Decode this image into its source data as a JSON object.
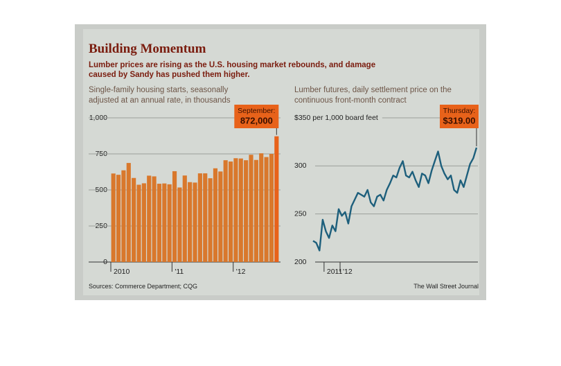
{
  "header": {
    "title": "Building Momentum",
    "subtitle": "Lumber prices are rising as the U.S. housing market rebounds, and damage caused by Sandy has pushed them higher."
  },
  "chart_data": [
    {
      "type": "bar",
      "title": "Single-family housing starts, seasonally adjusted at an annual rate, in thousands",
      "categories": [
        "2010",
        null,
        null,
        null,
        null,
        null,
        null,
        null,
        null,
        null,
        null,
        null,
        "'11",
        null,
        null,
        null,
        null,
        null,
        null,
        null,
        null,
        null,
        null,
        null,
        "'12",
        null,
        null,
        null,
        null,
        null,
        null,
        null,
        null
      ],
      "values": [
        614,
        605,
        636,
        687,
        583,
        536,
        546,
        599,
        594,
        543,
        545,
        539,
        630,
        517,
        600,
        554,
        551,
        615,
        615,
        581,
        650,
        628,
        706,
        697,
        720,
        718,
        706,
        744,
        708,
        754,
        728,
        750,
        872
      ],
      "value_labels": [
        null,
        null,
        null,
        null,
        null,
        null,
        null,
        null,
        null,
        null,
        null,
        null,
        null,
        null,
        null,
        null,
        null,
        null,
        null,
        null,
        null,
        null,
        null,
        null,
        null,
        null,
        null,
        null,
        null,
        null,
        null,
        null,
        "872,000"
      ],
      "annotation": "September:",
      "color": "#d9782c",
      "highlight_color": "#e8621a",
      "ylim": [
        0,
        1000
      ],
      "yticks": [
        0,
        250,
        500,
        750,
        {
          "value": 1000,
          "label": "1,000"
        }
      ],
      "grid": true
    },
    {
      "type": "line",
      "title": "Lumber futures, daily settlement price on the continuous front-month contract",
      "categories": [
        null,
        null,
        null,
        "2011",
        null,
        null,
        null,
        null,
        "'12",
        null,
        null,
        null,
        null,
        null,
        null,
        null,
        null,
        null,
        null,
        null,
        null,
        null,
        null,
        null,
        null,
        null,
        null,
        null,
        null,
        null,
        null,
        null,
        null,
        null,
        null,
        null,
        null,
        null,
        null,
        null,
        null,
        null,
        null,
        null,
        null,
        null,
        null,
        null,
        null,
        null,
        null,
        null
      ],
      "values": [
        222,
        220,
        212,
        244,
        232,
        225,
        238,
        232,
        255,
        248,
        252,
        240,
        258,
        265,
        272,
        270,
        268,
        275,
        262,
        258,
        268,
        270,
        264,
        275,
        282,
        290,
        288,
        298,
        305,
        290,
        288,
        294,
        285,
        278,
        292,
        290,
        282,
        295,
        305,
        315,
        300,
        292,
        286,
        290,
        275,
        272,
        285,
        278,
        290,
        302,
        308,
        319
      ],
      "value_labels": [
        null,
        null,
        null,
        null,
        null,
        null,
        null,
        null,
        null,
        null,
        null,
        null,
        null,
        null,
        null,
        null,
        null,
        null,
        null,
        null,
        null,
        null,
        null,
        null,
        null,
        null,
        null,
        null,
        null,
        null,
        null,
        null,
        null,
        null,
        null,
        null,
        null,
        null,
        null,
        null,
        null,
        null,
        null,
        null,
        null,
        null,
        null,
        null,
        null,
        null,
        null,
        "$319.00"
      ],
      "annotation": "Thursday:",
      "color": "#1d5f7c",
      "highlight_color": "#e8621a",
      "ylim": [
        200,
        350
      ],
      "yticks": [
        200,
        250,
        300,
        {
          "value": 350,
          "label": "$350 per 1,000 board feet"
        }
      ],
      "grid": true
    }
  ],
  "footer": {
    "sources": "Sources: Commerce Department; CQG",
    "credit": "The Wall Street Journal"
  }
}
